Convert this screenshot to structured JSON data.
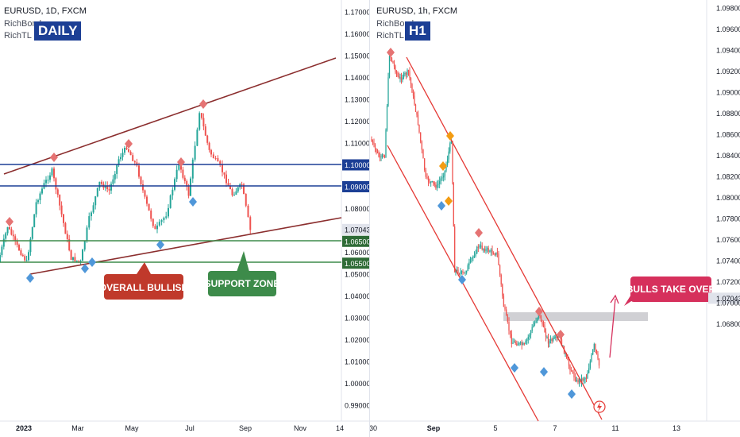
{
  "left": {
    "symbol": "EURUSD, 1D, FXCM",
    "indicator1": "RichBomb",
    "indicator2": "RichTL",
    "timeframe_badge": "DAILY",
    "price_ticks": [
      "1.17000",
      "1.16000",
      "1.15000",
      "1.14000",
      "1.13000",
      "1.12000",
      "1.11000",
      "1.10000",
      "1.09000",
      "1.08000",
      "1.07043",
      "1.06500",
      "1.06000",
      "1.05500",
      "1.05000",
      "1.04000",
      "1.03000",
      "1.02000",
      "1.01000",
      "1.00000",
      "0.99000"
    ],
    "time_ticks": [
      "2023",
      "Mar",
      "May",
      "Jul",
      "Sep",
      "Nov",
      "14"
    ],
    "label_overall": "OVERALL BULLISH",
    "label_support": "SUPPORT ZONE",
    "colors": {
      "accent_red": "#c0392b",
      "accent_green": "#3d8b4a",
      "hline_blue": "#1c3f95",
      "trend": "#8b2e2e"
    }
  },
  "right": {
    "symbol": "EURUSD, 1h, FXCM",
    "indicator1": "RichBomb",
    "indicator2": "RichTL",
    "timeframe_badge": "H1",
    "price_ticks": [
      "1.09800",
      "1.09600",
      "1.09400",
      "1.09200",
      "1.09000",
      "1.08800",
      "1.08600",
      "1.08400",
      "1.08200",
      "1.08000",
      "1.07800",
      "1.07600",
      "1.07400",
      "1.07200",
      "1.07043",
      "1.07000",
      "1.06800"
    ],
    "time_ticks": [
      "30",
      "Sep",
      "5",
      "7",
      "11",
      "13"
    ],
    "label_bulls": "BULLS TAKE OVER",
    "colors": {
      "channel": "#e53935",
      "zone": "#c8c8cc"
    }
  }
}
